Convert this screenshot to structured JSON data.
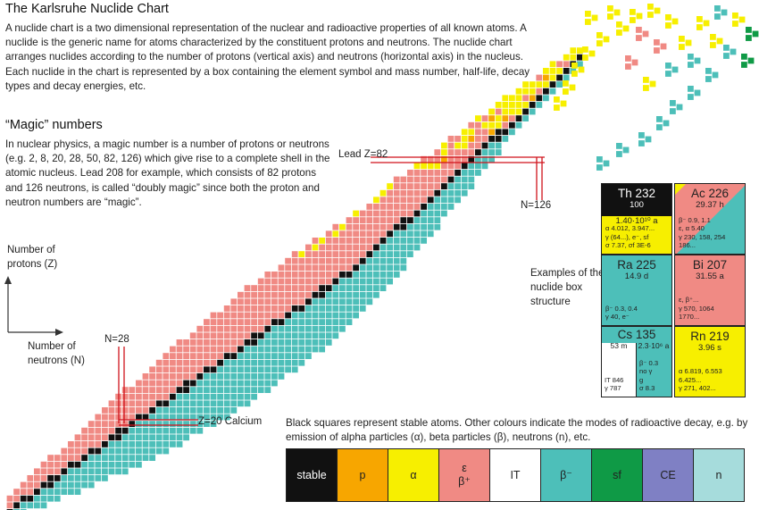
{
  "title": "The Karlsruhe Nuclide Chart",
  "intro": "A nuclide chart is a two dimensional representation of the nuclear and radioactive properties of all known atoms. A nuclide is the generic name for atoms characterized by the constituent protons and neutrons. The nuclide chart arranges nuclides according to the number of protons (vertical axis) and neutrons (horizontal axis) in the nucleus. Each nuclide in the chart is represented by a box containing the element symbol and mass number, half-life, decay types and decay energies, etc.",
  "magic_heading": "“Magic” numbers",
  "magic_text": "In nuclear physics, a magic number is a number of protons or neutrons (e.g. 2, 8, 20, 28, 50, 82, 126) which give rise to a complete shell in the atomic nucleus. Lead 208 for example, which consists of 82 protons and 126 neutrons, is called “doubly magic” since both the proton and neutron numbers are “magic”.",
  "axis": {
    "y_label": "Number of protons (Z)",
    "x_label": "Number of neutrons (N)"
  },
  "annotations": {
    "lead": "Lead Z=82",
    "n126": "N=126",
    "n28": "N=28",
    "calcium": "Z=20 Calcium"
  },
  "examples_label": "Examples of the nuclide box structure",
  "boxes": [
    {
      "name": "Th 232",
      "sub": "100",
      "halflife": "1.40·10¹⁰ a",
      "details": [
        "α 4.012, 3.947...",
        "γ (64...), e⁻, sf",
        "σ 7.37, σf 3E-6"
      ]
    },
    {
      "name": "Ac 226",
      "halflife": "29.37 h",
      "details": [
        "β⁻ 0.9, 1.1",
        "ε, α 5.40",
        "γ 230, 158, 254",
        "186..."
      ]
    },
    {
      "name": "Ra 225",
      "halflife": "14.9 d",
      "details": [
        "β⁻ 0.3, 0.4",
        "γ 40, e⁻"
      ]
    },
    {
      "name": "Bi 207",
      "halflife": "31.55 a",
      "details": [
        "ε, β⁺...",
        "γ 570, 1064",
        "1770..."
      ]
    },
    {
      "name": "Cs 135",
      "iso_halflife": "53 m",
      "halflife": "2.3·10⁶ a",
      "iso_details": [
        "IT 846",
        "γ 787"
      ],
      "details": [
        "β⁻ 0.3",
        "no γ",
        "g",
        "σ 8.3"
      ]
    },
    {
      "name": "Rn 219",
      "halflife": "3.96 s",
      "details": [
        "α 6.819, 6.553",
        "6.425...",
        "γ 271, 402..."
      ]
    }
  ],
  "legend_text": "Black squares represent stable atoms. Other colours indicate the modes of radioactive decay, e.g. by emission of alpha particles (α), beta particles (β), neutrons (n), etc.",
  "legend": [
    {
      "label": "stable",
      "color": "#111111",
      "text_color": "#ffffff"
    },
    {
      "label": "p",
      "color": "#f7a600",
      "text_color": "#222222"
    },
    {
      "label": "α",
      "color": "#f7ef00",
      "text_color": "#222222"
    },
    {
      "label": "ε",
      "label2": "β⁺",
      "color": "#f08a84",
      "text_color": "#222222"
    },
    {
      "label": "IT",
      "color": "#ffffff",
      "text_color": "#222222"
    },
    {
      "label": "β⁻",
      "color": "#4dbfb9",
      "text_color": "#222222"
    },
    {
      "label": "sf",
      "color": "#0f9a46",
      "text_color": "#222222"
    },
    {
      "label": "CE",
      "color": "#7f80c4",
      "text_color": "#222222"
    },
    {
      "label": "n",
      "color": "#a6dcdc",
      "text_color": "#222222"
    }
  ]
}
